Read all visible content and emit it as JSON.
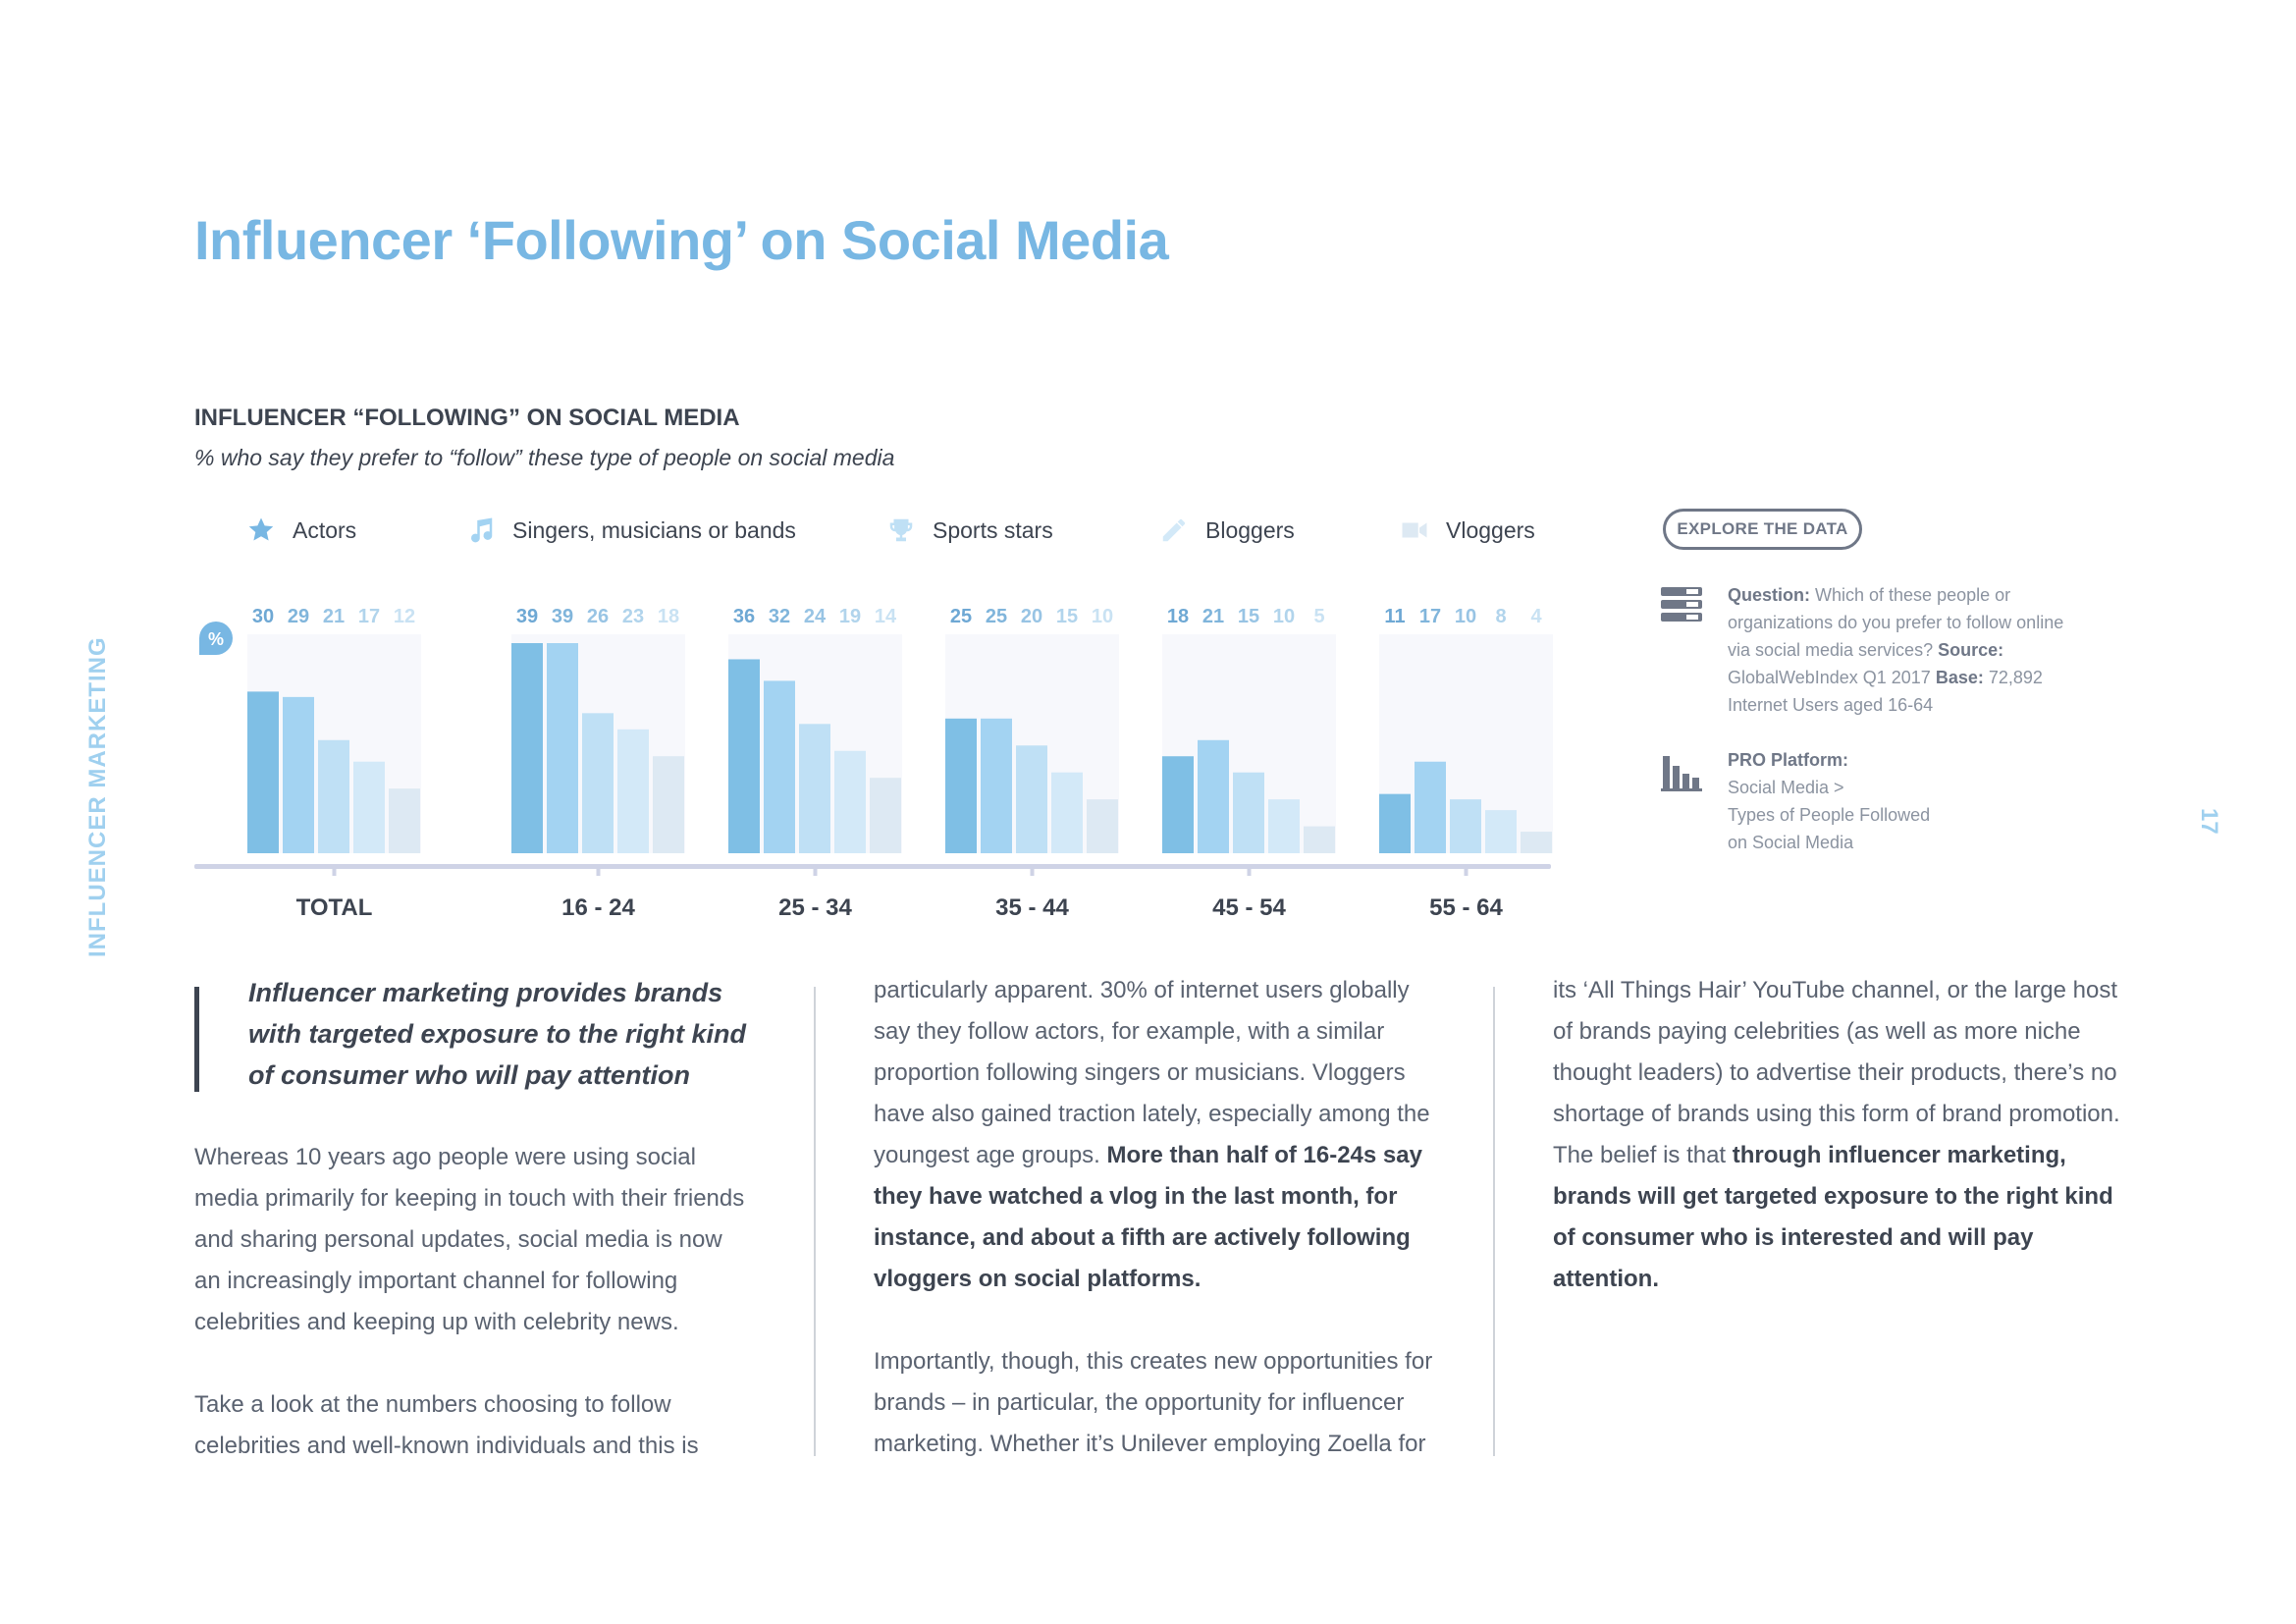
{
  "side_label": "INFLUENCER MARKETING",
  "page_number": "17",
  "page_title": "Influencer ‘Following’ on Social Media",
  "chart_heading": "INFLUENCER “FOLLOWING” ON SOCIAL MEDIA",
  "chart_subheading": "% who say they prefer to “follow” these type of people on social media",
  "legend": [
    {
      "label": "Actors",
      "icon": "star-icon"
    },
    {
      "label": "Singers, musicians or bands",
      "icon": "music-note-icon"
    },
    {
      "label": "Sports stars",
      "icon": "trophy-icon"
    },
    {
      "label": "Bloggers",
      "icon": "pencil-icon"
    },
    {
      "label": "Vloggers",
      "icon": "video-camera-icon"
    }
  ],
  "colors": {
    "accent": "#78b7e3",
    "series": [
      "#7fbfe5",
      "#a3d3f2",
      "#bfe0f5",
      "#d3e9f8",
      "#dde9f3"
    ],
    "value_labels": [
      "#6ea8d4",
      "#80b5db",
      "#98c4e4",
      "#b1d4ec",
      "#c9e2f3"
    ],
    "panel": "#f7f8fc",
    "axis": "#cfd3e6"
  },
  "chart_data": {
    "type": "bar",
    "title": "INFLUENCER “FOLLOWING” ON SOCIAL MEDIA",
    "subtitle": "% who say they prefer to “follow” these type of people on social media",
    "unit": "%",
    "ylim": [
      0,
      40
    ],
    "categories": [
      "TOTAL",
      "16 - 24",
      "25 - 34",
      "35 - 44",
      "45 - 54",
      "55 - 64"
    ],
    "series": [
      {
        "name": "Actors",
        "values": [
          30,
          39,
          36,
          25,
          18,
          11
        ]
      },
      {
        "name": "Singers, musicians or bands",
        "values": [
          29,
          39,
          32,
          25,
          21,
          17
        ]
      },
      {
        "name": "Sports stars",
        "values": [
          21,
          26,
          24,
          20,
          15,
          10
        ]
      },
      {
        "name": "Bloggers",
        "values": [
          17,
          23,
          19,
          15,
          10,
          8
        ]
      },
      {
        "name": "Vloggers",
        "values": [
          12,
          18,
          14,
          10,
          5,
          4
        ]
      }
    ],
    "legend_position": "top"
  },
  "explore_button": "EXPLORE THE DATA",
  "question": {
    "label": "Question:",
    "text": "Which of these people or organizations do you prefer to follow online via social media services?",
    "source_label": "Source:",
    "source": "GlobalWebIndex Q1 2017",
    "base_label": "Base:",
    "base": "72,892",
    "base_desc": "Internet Users aged 16-64"
  },
  "pro_platform": {
    "label": "PRO Platform:",
    "line1": "Social Media >",
    "line2": "Types of People Followed",
    "line3": "on Social Media"
  },
  "pull_quote": "Influencer marketing provides brands with targeted exposure to the right kind of consumer who will pay attention",
  "column1": {
    "p1": "Whereas 10 years ago people were using social media primarily for keeping in touch with their friends and sharing personal updates, social media is now an increasingly important channel for following celebrities and keeping up with celebrity news.",
    "p2": "Take a look at the numbers choosing to follow celebrities and well-known individuals and this is"
  },
  "column2": {
    "p1_a": "particularly apparent. 30% of internet users globally say they follow actors, for example, with a similar proportion following singers or musicians. Vloggers have also gained traction lately, especially among the youngest age groups.",
    "p1_b": "More than half of 16-24s say they have watched a vlog in the last month, for instance, and about a fifth are actively following vloggers on social platforms.",
    "p2": "Importantly, though, this creates new opportunities for brands – in particular, the opportunity for influencer marketing. Whether it’s Unilever employing Zoella for"
  },
  "column3": {
    "p1_a": "its ‘All Things Hair’ YouTube channel, or the large host of brands paying celebrities (as well as more niche thought leaders) to advertise their products, there’s no shortage of brands using this form of brand promotion. The belief is that",
    "p1_b": "through influencer marketing, brands will get targeted exposure to the right kind of consumer who is interested and will pay attention."
  }
}
